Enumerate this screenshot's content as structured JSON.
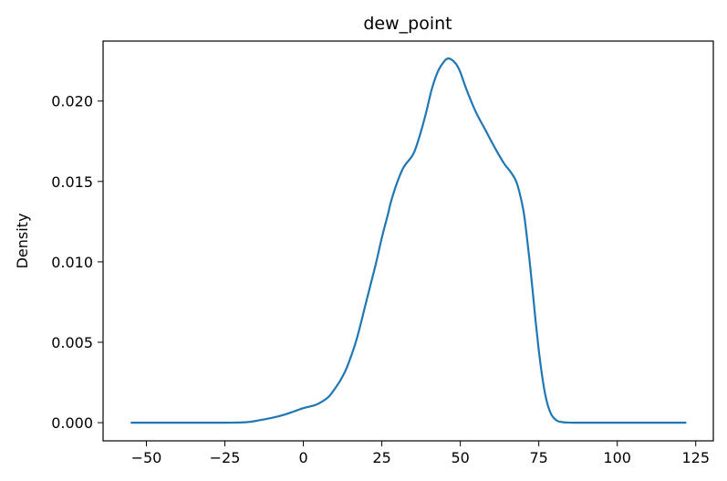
{
  "chart_data": {
    "type": "line",
    "title": "dew_point",
    "xlabel": "",
    "ylabel": "Density",
    "xlim": [
      -63.8,
      130.6
    ],
    "ylim": [
      -0.00113,
      0.02373
    ],
    "x_ticks": [
      -50,
      -25,
      0,
      25,
      50,
      75,
      100,
      125
    ],
    "x_tick_labels": [
      "−50",
      "−25",
      "0",
      "25",
      "50",
      "75",
      "100",
      "125"
    ],
    "y_ticks": [
      0.0,
      0.005,
      0.01,
      0.015,
      0.02
    ],
    "y_tick_labels": [
      "0.000",
      "0.005",
      "0.010",
      "0.015",
      "0.020"
    ],
    "grid": false,
    "legend": "none",
    "series": [
      {
        "color": "#1f77b4",
        "x": [
          -55,
          -40,
          -25,
          -20,
          -17,
          -14,
          -10,
          -6,
          -3,
          0,
          3,
          5,
          8,
          10,
          12,
          14,
          17,
          20,
          23,
          25,
          27,
          28,
          30,
          32,
          35,
          37,
          39,
          41,
          43,
          45,
          46,
          47,
          48,
          49,
          50,
          52,
          55,
          58,
          61,
          64,
          66,
          68,
          70,
          71,
          72,
          73,
          74,
          75,
          76,
          77,
          78,
          79,
          80,
          81,
          82,
          83,
          84,
          86,
          90,
          100,
          110,
          122
        ],
        "y": [
          0.0,
          0.0,
          0.0,
          1e-05,
          5e-05,
          0.00015,
          0.0003,
          0.0005,
          0.0007,
          0.0009,
          0.00105,
          0.0012,
          0.0016,
          0.0021,
          0.0027,
          0.0035,
          0.0052,
          0.0075,
          0.0098,
          0.0115,
          0.013,
          0.0138,
          0.015,
          0.0159,
          0.0167,
          0.0178,
          0.0192,
          0.0208,
          0.0219,
          0.0225,
          0.02265,
          0.0226,
          0.02245,
          0.0222,
          0.0218,
          0.0207,
          0.0193,
          0.0182,
          0.0171,
          0.0161,
          0.0156,
          0.0149,
          0.0133,
          0.0119,
          0.0102,
          0.0083,
          0.0063,
          0.0045,
          0.003,
          0.0018,
          0.001,
          0.0005,
          0.00025,
          0.0001,
          5e-05,
          2e-05,
          1e-05,
          0.0,
          0.0,
          0.0,
          0.0,
          0.0
        ]
      }
    ]
  }
}
